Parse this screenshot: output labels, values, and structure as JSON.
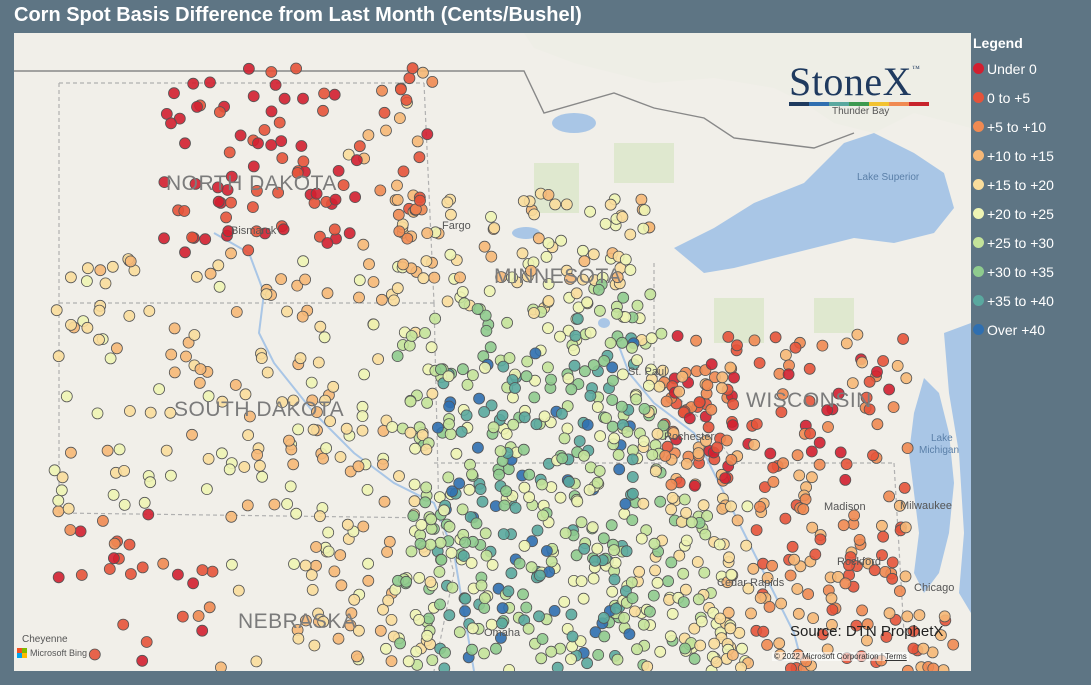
{
  "title": "Corn Spot Basis Difference from Last Month (Cents/Bushel)",
  "legend": {
    "title": "Legend",
    "items": [
      {
        "label": "Under 0",
        "color": "#d21f30"
      },
      {
        "label": "0 to +5",
        "color": "#e5533a"
      },
      {
        "label": "+5 to +10",
        "color": "#f08a52"
      },
      {
        "label": "+10 to +15",
        "color": "#f6b877"
      },
      {
        "label": "+15 to +20",
        "color": "#f9dd9c"
      },
      {
        "label": "+20 to +25",
        "color": "#eef4b4"
      },
      {
        "label": "+25 to +30",
        "color": "#c4e39a"
      },
      {
        "label": "+30 to +35",
        "color": "#8fcb8e"
      },
      {
        "label": "+35 to +40",
        "color": "#5aa89f"
      },
      {
        "label": "Over +40",
        "color": "#2f6fb0"
      }
    ]
  },
  "logo": {
    "text": "StoneX",
    "trademark": "™"
  },
  "map_labels": {
    "north_dakota": "NORTH DAKOTA",
    "south_dakota": "SOUTH DAKOTA",
    "minnesota": "MINNESOTA",
    "wisconsin": "WISCONSIN",
    "nebraska": "NEBRASKA"
  },
  "city_labels": {
    "bismarck": "Bismarck",
    "fargo": "Fargo",
    "thunder_bay": "Thunder Bay",
    "st_paul": "St. Paul",
    "rochester": "Rochester",
    "madison": "Madison",
    "milwaukee": "Milwaukee",
    "rockford": "Rockford",
    "chicago": "Chicago",
    "cedar_rapids": "Cedar Rapids",
    "omaha": "Omaha",
    "cheyenne": "Cheyenne"
  },
  "water_labels": {
    "lake_superior": "Lake Superior",
    "lake_michigan_1": "Lake",
    "lake_michigan_2": "Michigan"
  },
  "source": "Source: DTN ProphetX",
  "copyright": "© 2022 Microsoft Corporation",
  "terms": "Terms",
  "bing": "Microsoft Bing"
}
